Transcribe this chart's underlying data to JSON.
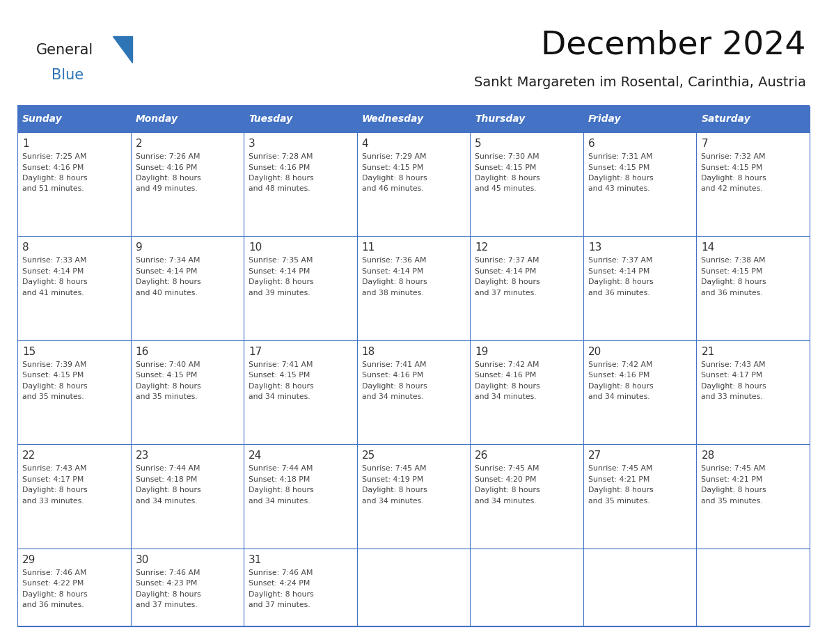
{
  "title": "December 2024",
  "subtitle": "Sankt Margareten im Rosental, Carinthia, Austria",
  "header_bg_color": "#4472C4",
  "header_text_color": "#FFFFFF",
  "day_names": [
    "Sunday",
    "Monday",
    "Tuesday",
    "Wednesday",
    "Thursday",
    "Friday",
    "Saturday"
  ],
  "cell_bg_color": "#FFFFFF",
  "grid_line_color": "#4472C4",
  "date_text_color": "#333333",
  "info_text_color": "#444444",
  "calendar_data": [
    [
      {
        "day": "1",
        "sunrise": "7:25 AM",
        "sunset": "4:16 PM",
        "daylight_h": "8 hours",
        "daylight_m": "51 minutes"
      },
      {
        "day": "2",
        "sunrise": "7:26 AM",
        "sunset": "4:16 PM",
        "daylight_h": "8 hours",
        "daylight_m": "49 minutes"
      },
      {
        "day": "3",
        "sunrise": "7:28 AM",
        "sunset": "4:16 PM",
        "daylight_h": "8 hours",
        "daylight_m": "48 minutes"
      },
      {
        "day": "4",
        "sunrise": "7:29 AM",
        "sunset": "4:15 PM",
        "daylight_h": "8 hours",
        "daylight_m": "46 minutes"
      },
      {
        "day": "5",
        "sunrise": "7:30 AM",
        "sunset": "4:15 PM",
        "daylight_h": "8 hours",
        "daylight_m": "45 minutes"
      },
      {
        "day": "6",
        "sunrise": "7:31 AM",
        "sunset": "4:15 PM",
        "daylight_h": "8 hours",
        "daylight_m": "43 minutes"
      },
      {
        "day": "7",
        "sunrise": "7:32 AM",
        "sunset": "4:15 PM",
        "daylight_h": "8 hours",
        "daylight_m": "42 minutes"
      }
    ],
    [
      {
        "day": "8",
        "sunrise": "7:33 AM",
        "sunset": "4:14 PM",
        "daylight_h": "8 hours",
        "daylight_m": "41 minutes"
      },
      {
        "day": "9",
        "sunrise": "7:34 AM",
        "sunset": "4:14 PM",
        "daylight_h": "8 hours",
        "daylight_m": "40 minutes"
      },
      {
        "day": "10",
        "sunrise": "7:35 AM",
        "sunset": "4:14 PM",
        "daylight_h": "8 hours",
        "daylight_m": "39 minutes"
      },
      {
        "day": "11",
        "sunrise": "7:36 AM",
        "sunset": "4:14 PM",
        "daylight_h": "8 hours",
        "daylight_m": "38 minutes"
      },
      {
        "day": "12",
        "sunrise": "7:37 AM",
        "sunset": "4:14 PM",
        "daylight_h": "8 hours",
        "daylight_m": "37 minutes"
      },
      {
        "day": "13",
        "sunrise": "7:37 AM",
        "sunset": "4:14 PM",
        "daylight_h": "8 hours",
        "daylight_m": "36 minutes"
      },
      {
        "day": "14",
        "sunrise": "7:38 AM",
        "sunset": "4:15 PM",
        "daylight_h": "8 hours",
        "daylight_m": "36 minutes"
      }
    ],
    [
      {
        "day": "15",
        "sunrise": "7:39 AM",
        "sunset": "4:15 PM",
        "daylight_h": "8 hours",
        "daylight_m": "35 minutes"
      },
      {
        "day": "16",
        "sunrise": "7:40 AM",
        "sunset": "4:15 PM",
        "daylight_h": "8 hours",
        "daylight_m": "35 minutes"
      },
      {
        "day": "17",
        "sunrise": "7:41 AM",
        "sunset": "4:15 PM",
        "daylight_h": "8 hours",
        "daylight_m": "34 minutes"
      },
      {
        "day": "18",
        "sunrise": "7:41 AM",
        "sunset": "4:16 PM",
        "daylight_h": "8 hours",
        "daylight_m": "34 minutes"
      },
      {
        "day": "19",
        "sunrise": "7:42 AM",
        "sunset": "4:16 PM",
        "daylight_h": "8 hours",
        "daylight_m": "34 minutes"
      },
      {
        "day": "20",
        "sunrise": "7:42 AM",
        "sunset": "4:16 PM",
        "daylight_h": "8 hours",
        "daylight_m": "34 minutes"
      },
      {
        "day": "21",
        "sunrise": "7:43 AM",
        "sunset": "4:17 PM",
        "daylight_h": "8 hours",
        "daylight_m": "33 minutes"
      }
    ],
    [
      {
        "day": "22",
        "sunrise": "7:43 AM",
        "sunset": "4:17 PM",
        "daylight_h": "8 hours",
        "daylight_m": "33 minutes"
      },
      {
        "day": "23",
        "sunrise": "7:44 AM",
        "sunset": "4:18 PM",
        "daylight_h": "8 hours",
        "daylight_m": "34 minutes"
      },
      {
        "day": "24",
        "sunrise": "7:44 AM",
        "sunset": "4:18 PM",
        "daylight_h": "8 hours",
        "daylight_m": "34 minutes"
      },
      {
        "day": "25",
        "sunrise": "7:45 AM",
        "sunset": "4:19 PM",
        "daylight_h": "8 hours",
        "daylight_m": "34 minutes"
      },
      {
        "day": "26",
        "sunrise": "7:45 AM",
        "sunset": "4:20 PM",
        "daylight_h": "8 hours",
        "daylight_m": "34 minutes"
      },
      {
        "day": "27",
        "sunrise": "7:45 AM",
        "sunset": "4:21 PM",
        "daylight_h": "8 hours",
        "daylight_m": "35 minutes"
      },
      {
        "day": "28",
        "sunrise": "7:45 AM",
        "sunset": "4:21 PM",
        "daylight_h": "8 hours",
        "daylight_m": "35 minutes"
      }
    ],
    [
      {
        "day": "29",
        "sunrise": "7:46 AM",
        "sunset": "4:22 PM",
        "daylight_h": "8 hours",
        "daylight_m": "36 minutes"
      },
      {
        "day": "30",
        "sunrise": "7:46 AM",
        "sunset": "4:23 PM",
        "daylight_h": "8 hours",
        "daylight_m": "37 minutes"
      },
      {
        "day": "31",
        "sunrise": "7:46 AM",
        "sunset": "4:24 PM",
        "daylight_h": "8 hours",
        "daylight_m": "37 minutes"
      },
      null,
      null,
      null,
      null
    ]
  ],
  "logo_general_color": "#222222",
  "logo_blue_color": "#2E75B6",
  "logo_triangle_color": "#2E75B6",
  "fig_width": 11.88,
  "fig_height": 9.18,
  "dpi": 100
}
